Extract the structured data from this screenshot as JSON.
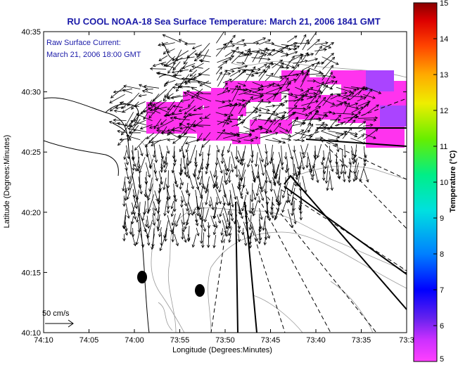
{
  "chart_data": {
    "type": "map",
    "title": "RU COOL  NOAA-18  Sea Surface Temperature:  March 21, 2006 1841 GMT",
    "annotation": [
      "Raw Surface Current:",
      "March 21, 2006 18:00 GMT"
    ],
    "xlabel": "Longitude (Degrees:Minutes)",
    "ylabel": "Latitude (Degrees:Minutes)",
    "x_ticks": [
      "74:10",
      "74:05",
      "74:00",
      "73:55",
      "73:50",
      "73:45",
      "73:40",
      "73:35",
      "73:3"
    ],
    "y_ticks": [
      "40:35",
      "40:30",
      "40:25",
      "40:20",
      "40:15",
      "40:10"
    ],
    "xlim_deg": [
      -74.1667,
      -73.5
    ],
    "ylim_deg": [
      40.1667,
      40.5833
    ],
    "colorbar": {
      "label": "Temperature (°C)",
      "range": [
        5,
        15
      ],
      "ticks": [
        "15",
        "14",
        "13",
        "12",
        "11",
        "10",
        "9",
        "8",
        "7",
        "6",
        "5"
      ]
    },
    "scale_vector_label": "50 cm/s",
    "colors": {
      "sst_patch": "#ff33ee",
      "sst_warm": "#aa44ff",
      "coast": "#000000",
      "bathymetry": "#888888",
      "vectors": "#000000",
      "title_text": "#1a1aa8"
    },
    "features": {
      "shipping_channels": 6,
      "dark_markers": 2,
      "grid": false
    }
  }
}
